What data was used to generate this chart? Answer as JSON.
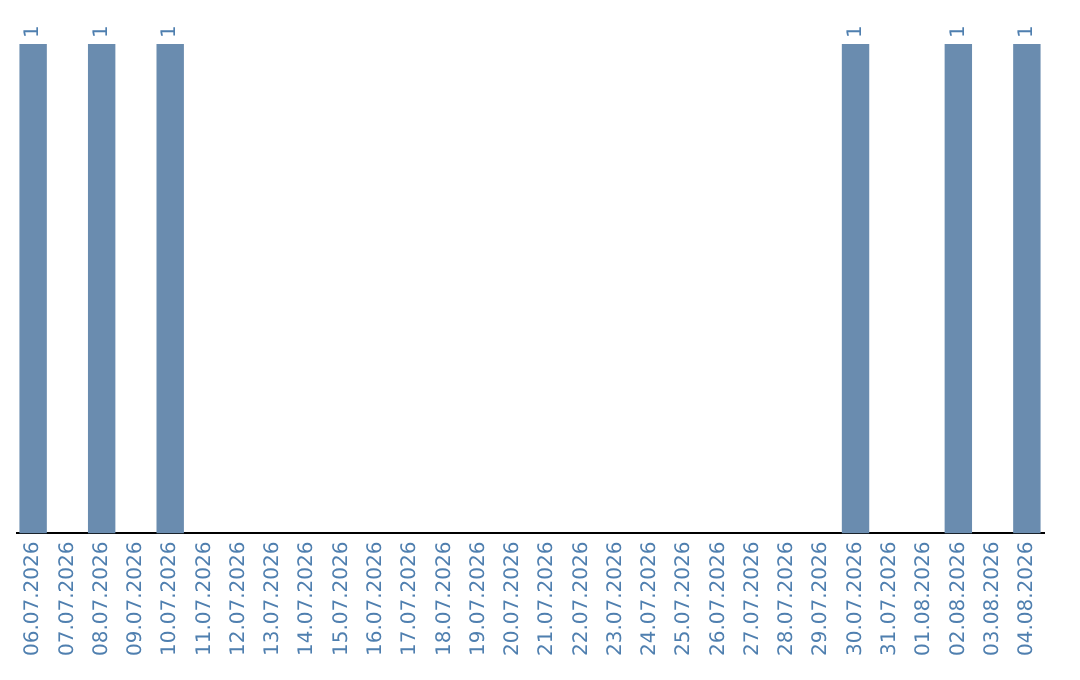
{
  "chart_data": {
    "type": "bar",
    "tick_labels": "x",
    "categories": [
      "06.07.2026",
      "07.07.2026",
      "08.07.2026",
      "09.07.2026",
      "10.07.2026",
      "11.07.2026",
      "12.07.2026",
      "13.07.2026",
      "14.07.2026",
      "15.07.2026",
      "16.07.2026",
      "17.07.2026",
      "18.07.2026",
      "19.07.2026",
      "20.07.2026",
      "21.07.2026",
      "22.07.2026",
      "23.07.2026",
      "24.07.2026",
      "25.07.2026",
      "26.07.2026",
      "27.07.2026",
      "28.07.2026",
      "29.07.2026",
      "30.07.2026",
      "31.07.2026",
      "01.08.2026",
      "02.08.2026",
      "03.08.2026",
      "04.08.2026"
    ],
    "values": [
      1,
      0,
      1,
      0,
      1,
      0,
      0,
      0,
      0,
      0,
      0,
      0,
      0,
      0,
      0,
      0,
      0,
      0,
      0,
      0,
      0,
      0,
      0,
      0,
      1,
      0,
      0,
      1,
      0,
      1
    ],
    "value_labels": [
      "1",
      null,
      "1",
      null,
      "1",
      null,
      null,
      null,
      null,
      null,
      null,
      null,
      null,
      null,
      null,
      null,
      null,
      null,
      null,
      null,
      null,
      null,
      null,
      null,
      "1",
      null,
      null,
      "1",
      null,
      "1"
    ],
    "color": "#6a8caf",
    "grid": false,
    "legend": false
  }
}
